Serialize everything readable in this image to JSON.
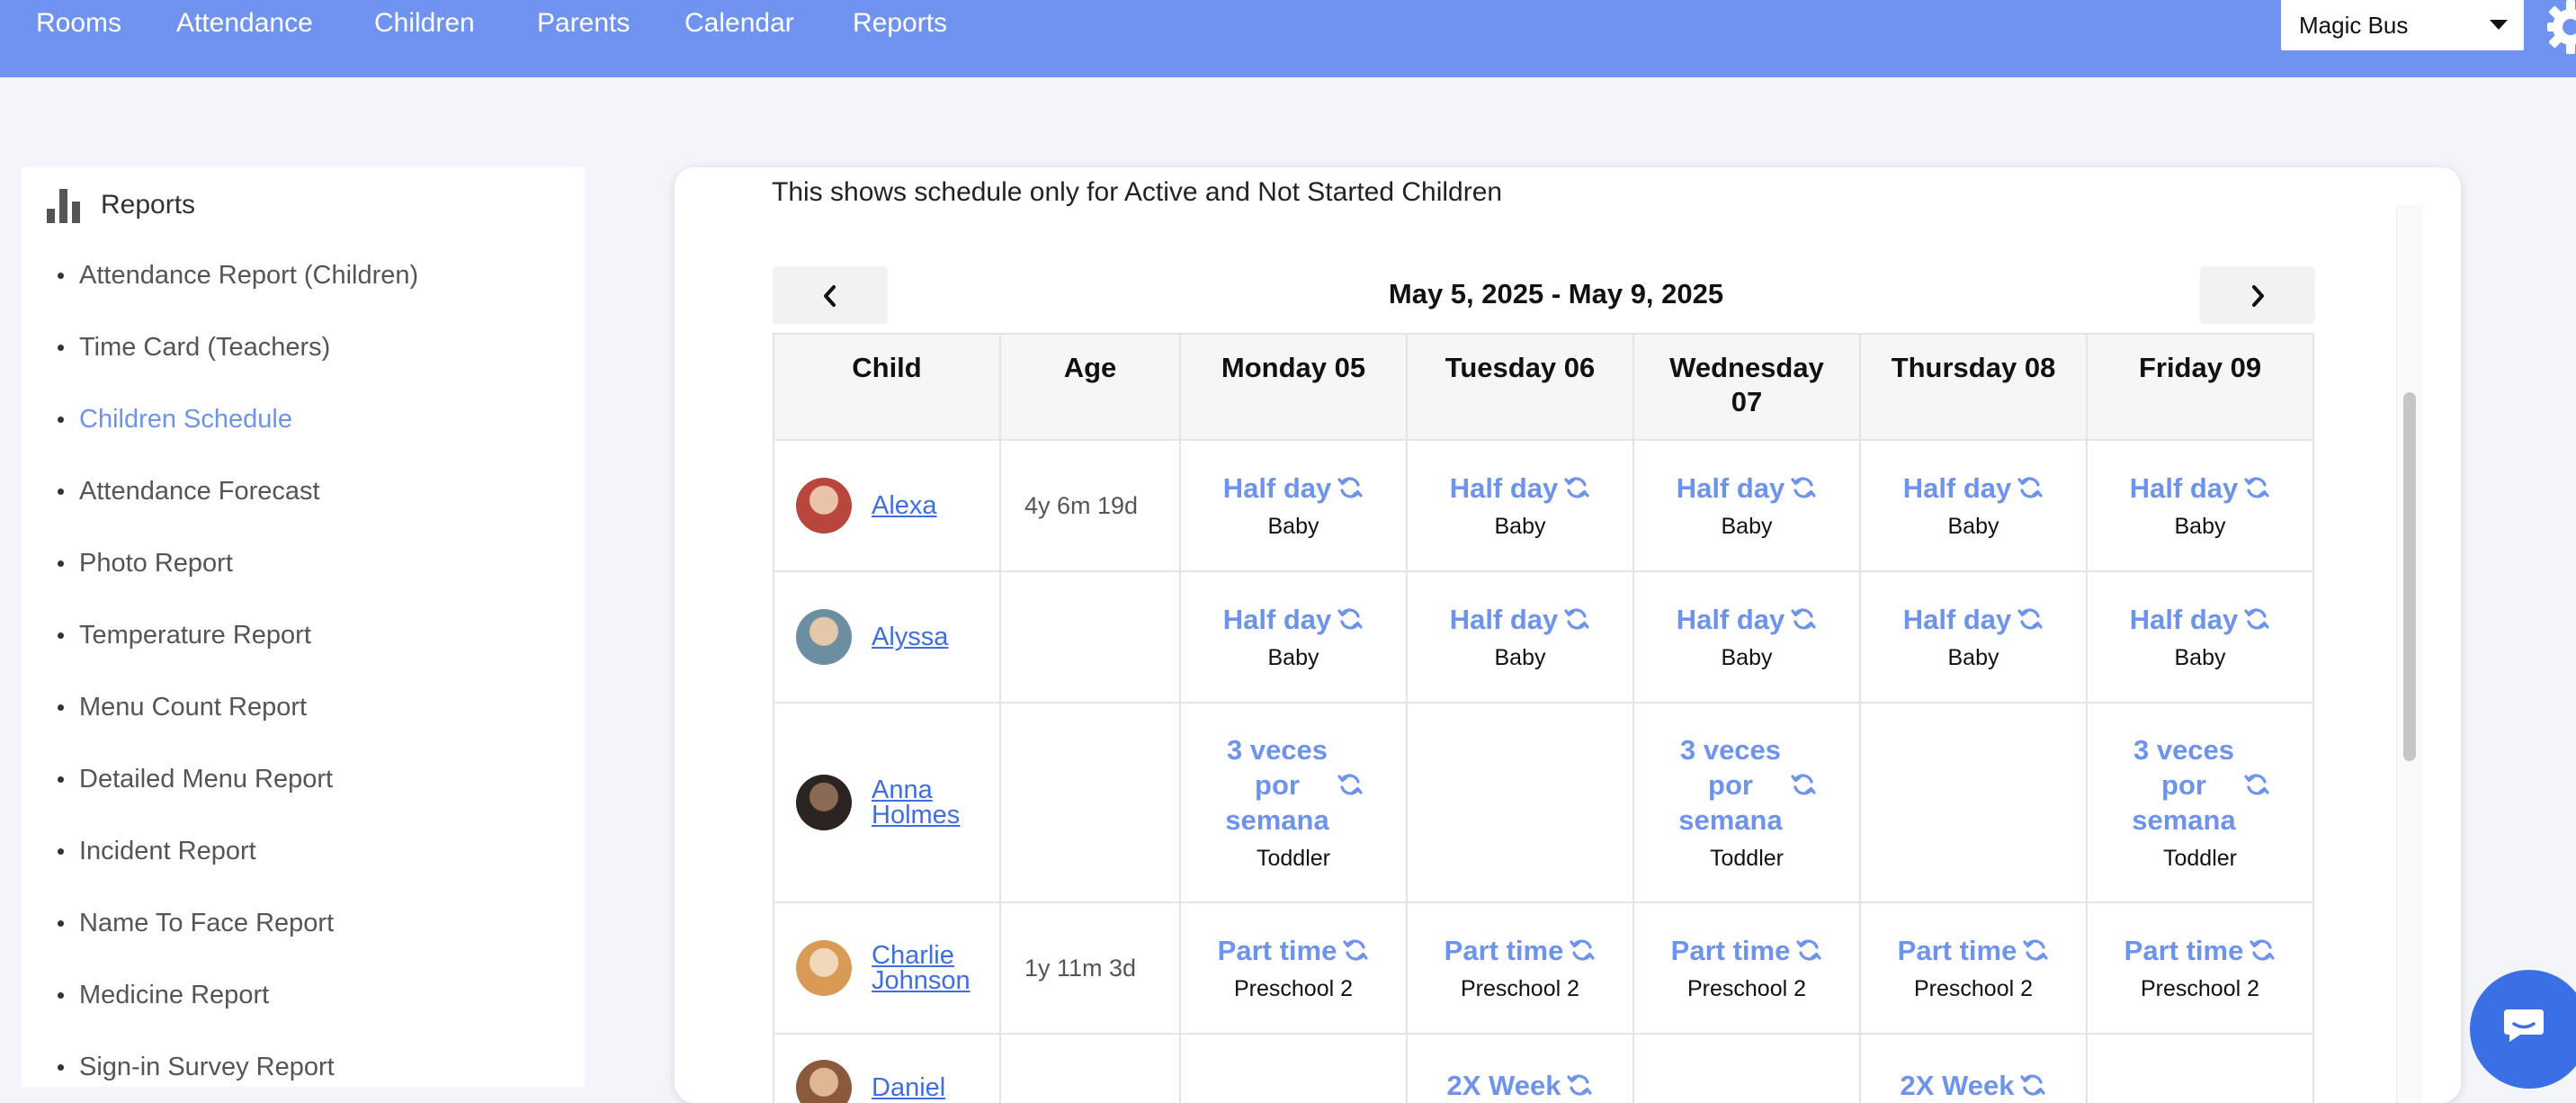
{
  "nav": {
    "items": [
      "Rooms",
      "Attendance",
      "Children",
      "Parents",
      "Calendar",
      "Reports"
    ],
    "school": "Magic Bus",
    "settings_icon": "gear-icon"
  },
  "sidebar": {
    "title": "Reports",
    "title_icon": "bar-chart-icon",
    "items": [
      "Attendance Report (Children)",
      "Time Card (Teachers)",
      "Children Schedule",
      "Attendance Forecast",
      "Photo Report",
      "Temperature Report",
      "Menu Count Report",
      "Detailed Menu Report",
      "Incident Report",
      "Name To Face Report",
      "Medicine Report",
      "Sign-in Survey Report"
    ],
    "active_item": "Children Schedule"
  },
  "main": {
    "note": "This shows schedule only for Active and Not Started Children",
    "week": "May 5, 2025 - May 9, 2025",
    "prev_icon": "chevron-left-icon",
    "next_icon": "chevron-right-icon",
    "columns": [
      "Child",
      "Age",
      "Monday 05",
      "Tuesday 06",
      "Wednesday 07",
      "Thursday 08",
      "Friday 09"
    ],
    "rows": [
      {
        "name": "Alexa",
        "age": "4y 6m 19d",
        "days": [
          {
            "schedule": "Half day",
            "room": "Baby"
          },
          {
            "schedule": "Half day",
            "room": "Baby"
          },
          {
            "schedule": "Half day",
            "room": "Baby"
          },
          {
            "schedule": "Half day",
            "room": "Baby"
          },
          {
            "schedule": "Half day",
            "room": "Baby"
          }
        ]
      },
      {
        "name": "Alyssa",
        "age": "",
        "days": [
          {
            "schedule": "Half day",
            "room": "Baby"
          },
          {
            "schedule": "Half day",
            "room": "Baby"
          },
          {
            "schedule": "Half day",
            "room": "Baby"
          },
          {
            "schedule": "Half day",
            "room": "Baby"
          },
          {
            "schedule": "Half day",
            "room": "Baby"
          }
        ]
      },
      {
        "name": "Anna Holmes",
        "age": "",
        "days": [
          {
            "schedule": "3 veces por semana",
            "room": "Toddler"
          },
          null,
          {
            "schedule": "3 veces por semana",
            "room": "Toddler"
          },
          null,
          {
            "schedule": "3 veces por semana",
            "room": "Toddler"
          }
        ]
      },
      {
        "name": "Charlie Johnson",
        "age": "1y 11m 3d",
        "days": [
          {
            "schedule": "Part time",
            "room": "Preschool 2"
          },
          {
            "schedule": "Part time",
            "room": "Preschool 2"
          },
          {
            "schedule": "Part time",
            "room": "Preschool 2"
          },
          {
            "schedule": "Part time",
            "room": "Preschool 2"
          },
          {
            "schedule": "Part time",
            "room": "Preschool 2"
          }
        ]
      },
      {
        "name": "Daniel",
        "age": "",
        "days": [
          null,
          {
            "schedule": "2X Week",
            "room": ""
          },
          null,
          {
            "schedule": "2X Week",
            "room": ""
          },
          null
        ]
      }
    ]
  },
  "chat_icon": "chat-bubble-icon"
}
